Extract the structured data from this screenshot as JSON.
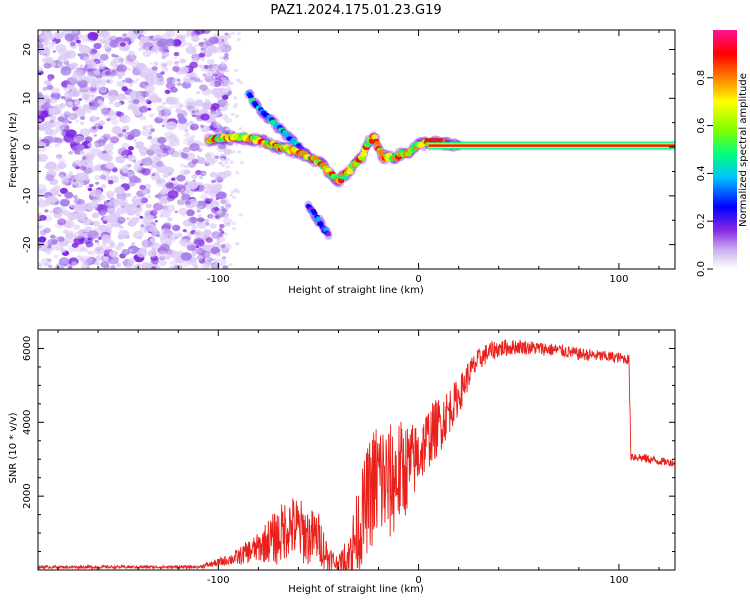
{
  "title": "PAZ1.2024.175.01.23.G19",
  "chart_data": [
    {
      "type": "heatmap",
      "xlabel": "Height of straight line (km)",
      "ylabel": "Frequency (Hz)",
      "xlim": [
        -190,
        128
      ],
      "ylim": [
        -25,
        24
      ],
      "xticks": [
        -100,
        0,
        100
      ],
      "yticks": [
        -20,
        -10,
        0,
        10,
        20
      ],
      "colorbar": {
        "label": "Normalized spectral amplitude",
        "range": [
          0,
          1
        ],
        "ticks": [
          0.0,
          0.2,
          0.4,
          0.6,
          0.8
        ]
      },
      "features": [
        {
          "name": "noise_region",
          "x": [
            -190,
            -95
          ],
          "y": [
            -25,
            24
          ],
          "amplitude": 0.1
        },
        {
          "name": "signal_track",
          "points": [
            [
              -105,
              1.5
            ],
            [
              -90,
              2
            ],
            [
              -80,
              1.5
            ],
            [
              -70,
              0
            ],
            [
              -60,
              -1
            ],
            [
              -50,
              -3
            ],
            [
              -45,
              -5
            ],
            [
              -40,
              -7
            ],
            [
              -35,
              -5
            ],
            [
              -28,
              -2
            ],
            [
              -25,
              1
            ],
            [
              -22,
              2
            ],
            [
              -18,
              -2
            ],
            [
              -12,
              -2
            ],
            [
              -5,
              -1
            ],
            [
              0,
              0.5
            ],
            [
              5,
              1
            ],
            [
              20,
              0.3
            ],
            [
              128,
              0
            ]
          ],
          "amplitude": 0.9
        },
        {
          "name": "upper_branch",
          "points": [
            [
              -85,
              11
            ],
            [
              -80,
              8
            ],
            [
              -70,
              4
            ],
            [
              -60,
              0
            ],
            [
              -55,
              -2
            ]
          ],
          "amplitude": 0.5
        },
        {
          "name": "lower_branch",
          "points": [
            [
              -55,
              -12
            ],
            [
              -50,
              -15
            ],
            [
              -45,
              -18
            ]
          ],
          "amplitude": 0.4
        }
      ]
    },
    {
      "type": "line",
      "xlabel": "Height of straight line (km)",
      "ylabel": "SNR (10 * v/v)",
      "xlim": [
        -190,
        128
      ],
      "ylim": [
        0,
        6500
      ],
      "xticks": [
        -100,
        0,
        100
      ],
      "yticks": [
        2000,
        4000,
        6000
      ],
      "color": "#e8211c",
      "envelope": [
        [
          -190,
          80
        ],
        [
          -110,
          80
        ],
        [
          -100,
          200
        ],
        [
          -90,
          350
        ],
        [
          -85,
          500
        ],
        [
          -80,
          600
        ],
        [
          -75,
          800
        ],
        [
          -70,
          900
        ],
        [
          -65,
          1200
        ],
        [
          -60,
          1100
        ],
        [
          -55,
          900
        ],
        [
          -50,
          900
        ],
        [
          -45,
          300
        ],
        [
          -40,
          150
        ],
        [
          -35,
          350
        ],
        [
          -30,
          1100
        ],
        [
          -25,
          2000
        ],
        [
          -20,
          2500
        ],
        [
          -15,
          2300
        ],
        [
          -10,
          2600
        ],
        [
          -5,
          2800
        ],
        [
          0,
          3100
        ],
        [
          5,
          3600
        ],
        [
          10,
          3900
        ],
        [
          15,
          4300
        ],
        [
          20,
          4700
        ],
        [
          25,
          5300
        ],
        [
          30,
          5700
        ],
        [
          35,
          5900
        ],
        [
          40,
          6000
        ],
        [
          50,
          6050
        ],
        [
          60,
          6000
        ],
        [
          70,
          5950
        ],
        [
          80,
          5850
        ],
        [
          90,
          5800
        ],
        [
          100,
          5750
        ],
        [
          105,
          5700
        ],
        [
          106,
          3100
        ],
        [
          110,
          3050
        ],
        [
          120,
          2950
        ],
        [
          128,
          2900
        ]
      ],
      "spread": [
        [
          -190,
          40
        ],
        [
          -110,
          40
        ],
        [
          -95,
          150
        ],
        [
          -80,
          400
        ],
        [
          -70,
          800
        ],
        [
          -60,
          900
        ],
        [
          -50,
          700
        ],
        [
          -40,
          200
        ],
        [
          -30,
          1200
        ],
        [
          -20,
          1800
        ],
        [
          -10,
          1500
        ],
        [
          0,
          900
        ],
        [
          10,
          800
        ],
        [
          20,
          500
        ],
        [
          30,
          300
        ],
        [
          50,
          200
        ],
        [
          100,
          150
        ],
        [
          128,
          100
        ]
      ]
    }
  ],
  "colors": {
    "colormap": [
      "#ffffff",
      "#c9b2f0",
      "#8a2be2",
      "#0000ff",
      "#00bfff",
      "#00ff7f",
      "#7fff00",
      "#ffff00",
      "#ff7f00",
      "#ff0000",
      "#ff1493"
    ],
    "line": "#e8211c"
  }
}
